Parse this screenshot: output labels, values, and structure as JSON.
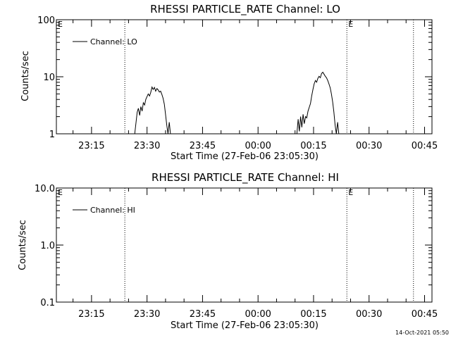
{
  "chart_data": [
    {
      "type": "line",
      "title": "RHESSI PARTICLE_RATE Channel: LO",
      "xlabel": "Start Time (27-Feb-06 23:05:30)",
      "ylabel": "Counts/sec",
      "y_scale": "log",
      "ylim": [
        1,
        100
      ],
      "xlim": [
        "23:05:30",
        "00:47:00"
      ],
      "y_ticks": [
        "1",
        "10",
        "100"
      ],
      "x_ticks": [
        "23:15",
        "23:30",
        "23:45",
        "00:00",
        "00:15",
        "00:30",
        "00:45"
      ],
      "legend": "Channel: LO",
      "legend_position": "top-left",
      "markers": [
        {
          "label": "E",
          "time": "23:05:30",
          "dotted": false
        },
        {
          "label": "",
          "time": "23:24:00",
          "dotted": true
        },
        {
          "label": "E",
          "time": "00:24:00",
          "dotted": true
        },
        {
          "label": "",
          "time": "00:42:00",
          "dotted": true
        }
      ],
      "series": [
        {
          "name": "Channel: LO",
          "x": [
            "23:26:40",
            "23:27:20",
            "23:27:40",
            "23:28:00",
            "23:28:20",
            "23:28:40",
            "23:29:00",
            "23:29:20",
            "23:29:40",
            "23:30:00",
            "23:30:20",
            "23:30:40",
            "23:31:00",
            "23:31:20",
            "23:31:40",
            "23:32:00",
            "23:32:20",
            "23:32:40",
            "23:33:00",
            "23:33:20",
            "23:33:40",
            "23:34:00",
            "23:34:20",
            "23:34:40",
            "23:35:00",
            "23:35:20",
            "23:35:40",
            "23:36:00",
            "23:36:20"
          ],
          "values": [
            1.0,
            2.4,
            2.8,
            2.1,
            3.0,
            2.5,
            3.5,
            3.2,
            4.0,
            4.5,
            5.0,
            4.6,
            5.3,
            6.6,
            6.0,
            6.5,
            5.6,
            6.2,
            5.9,
            5.4,
            5.6,
            4.9,
            4.2,
            3.3,
            2.2,
            1.4,
            1.0,
            1.6,
            1.0
          ]
        },
        {
          "name": "Channel: LO",
          "x": [
            "00:10:30",
            "00:10:50",
            "00:11:10",
            "00:11:30",
            "00:11:50",
            "00:12:10",
            "00:12:30",
            "00:12:50",
            "00:13:10",
            "00:13:30",
            "00:13:50",
            "00:14:10",
            "00:14:30",
            "00:14:50",
            "00:15:10",
            "00:15:30",
            "00:15:50",
            "00:16:10",
            "00:16:30",
            "00:16:50",
            "00:17:10",
            "00:17:30",
            "00:17:50",
            "00:18:10",
            "00:18:30",
            "00:18:50",
            "00:19:10",
            "00:19:30",
            "00:19:50",
            "00:20:10",
            "00:20:30",
            "00:20:50",
            "00:21:10",
            "00:21:30",
            "00:21:50",
            "00:22:10"
          ],
          "values": [
            1.0,
            1.8,
            1.1,
            2.0,
            1.3,
            2.2,
            1.5,
            2.0,
            1.9,
            2.5,
            2.9,
            3.4,
            4.6,
            6.0,
            7.5,
            8.6,
            8.0,
            9.4,
            10.2,
            9.6,
            11.4,
            12.0,
            11.1,
            10.2,
            9.6,
            8.6,
            7.5,
            6.4,
            5.0,
            3.6,
            2.4,
            1.4,
            1.0,
            1.6,
            1.0,
            1.0
          ]
        }
      ]
    },
    {
      "type": "line",
      "title": "RHESSI PARTICLE_RATE Channel: HI",
      "xlabel": "Start Time (27-Feb-06 23:05:30)",
      "ylabel": "Counts/sec",
      "y_scale": "log",
      "ylim": [
        0.1,
        10
      ],
      "xlim": [
        "23:05:30",
        "00:47:00"
      ],
      "y_ticks": [
        "0.1",
        "1.0",
        "10.0"
      ],
      "x_ticks": [
        "23:15",
        "23:30",
        "23:45",
        "00:00",
        "00:15",
        "00:30",
        "00:45"
      ],
      "legend": "Channel: HI",
      "legend_position": "top-left",
      "markers": [
        {
          "label": "E",
          "time": "23:05:30",
          "dotted": false
        },
        {
          "label": "",
          "time": "23:24:00",
          "dotted": true
        },
        {
          "label": "E",
          "time": "00:24:00",
          "dotted": true
        },
        {
          "label": "",
          "time": "00:42:00",
          "dotted": true
        }
      ],
      "series": [
        {
          "name": "Channel: HI",
          "x": [],
          "values": []
        }
      ]
    }
  ],
  "footer": {
    "timestamp": "14-Oct-2021 05:50"
  }
}
